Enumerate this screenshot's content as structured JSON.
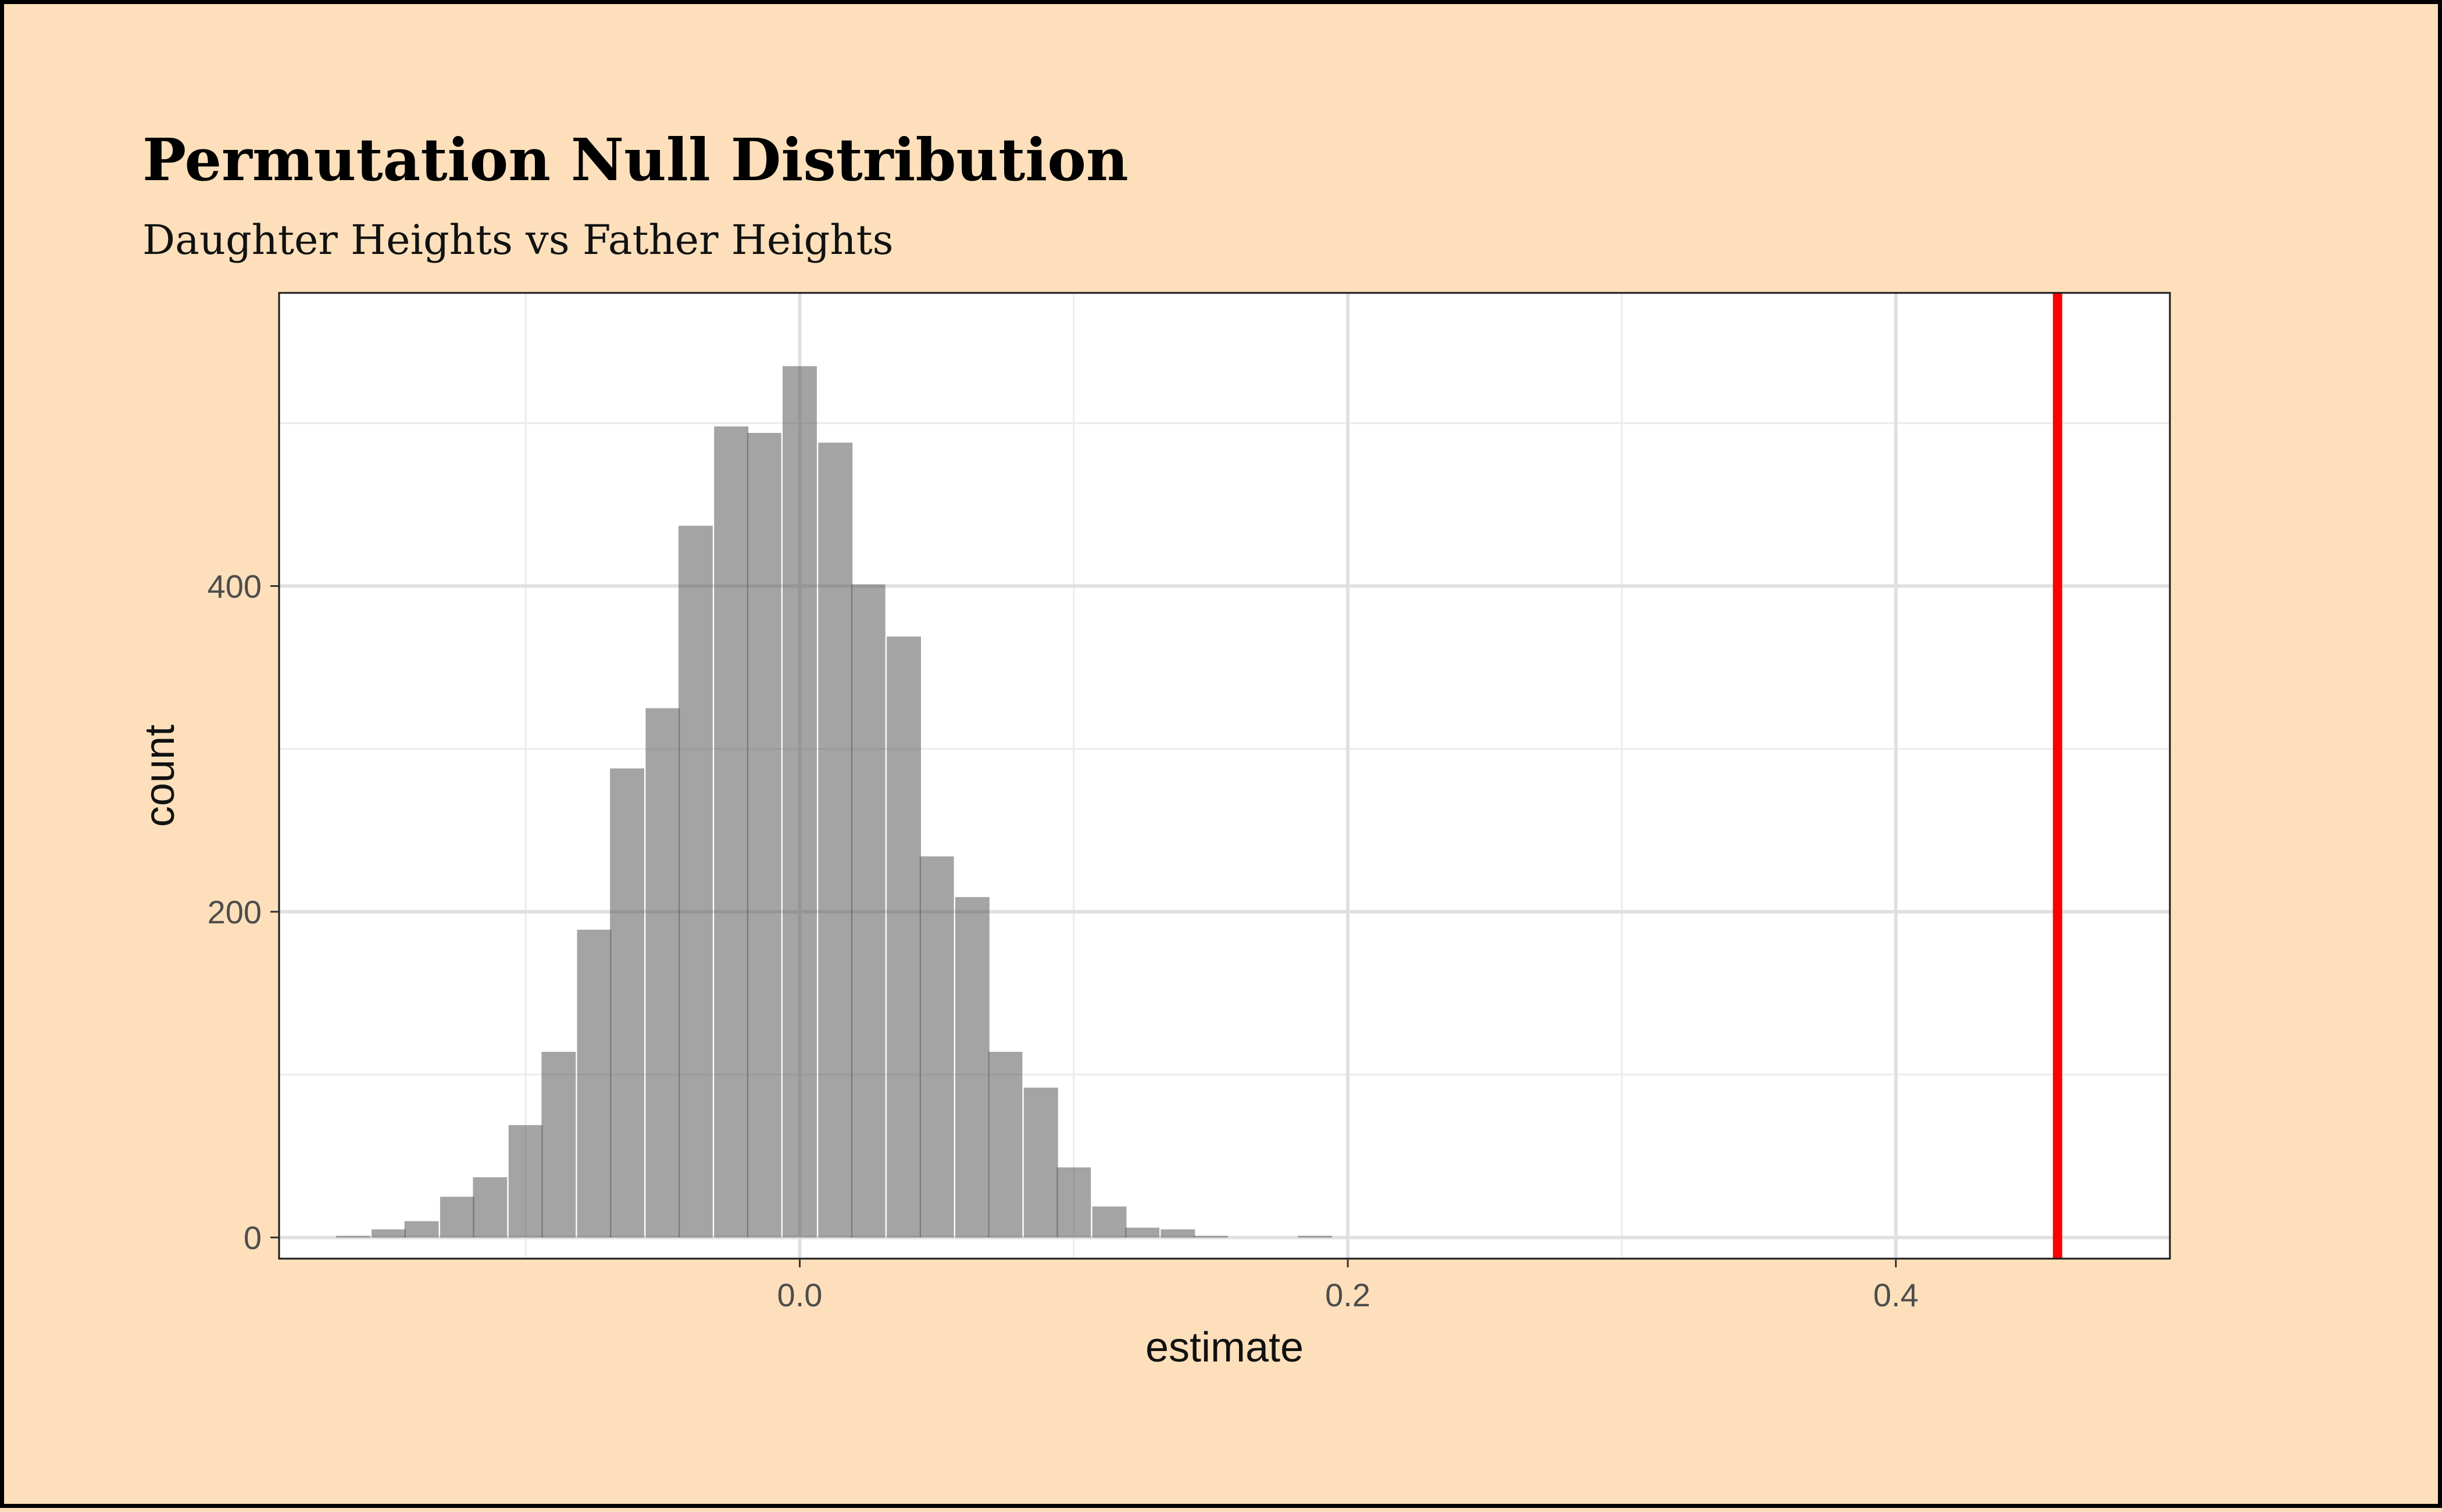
{
  "chart_data": {
    "type": "bar",
    "title": "Permutation Null Distribution",
    "subtitle": "Daughter Heights vs Father Heights",
    "xlabel": "estimate",
    "ylabel": "count",
    "xlim": [
      -0.19,
      0.5
    ],
    "ylim": [
      -13,
      580
    ],
    "x_ticks": [
      0.0,
      0.2,
      0.4
    ],
    "x_tick_labels": [
      "0.0",
      "0.2",
      "0.4"
    ],
    "y_ticks": [
      0,
      200,
      400
    ],
    "y_tick_labels": [
      "0",
      "200",
      "400"
    ],
    "bin_width": 0.0125,
    "bins": [
      {
        "x": -0.163,
        "count": 1
      },
      {
        "x": -0.15,
        "count": 5
      },
      {
        "x": -0.138,
        "count": 10
      },
      {
        "x": -0.125,
        "count": 25
      },
      {
        "x": -0.113,
        "count": 37
      },
      {
        "x": -0.1,
        "count": 69
      },
      {
        "x": -0.088,
        "count": 114
      },
      {
        "x": -0.075,
        "count": 189
      },
      {
        "x": -0.063,
        "count": 288
      },
      {
        "x": -0.05,
        "count": 325
      },
      {
        "x": -0.038,
        "count": 437
      },
      {
        "x": -0.025,
        "count": 498
      },
      {
        "x": -0.013,
        "count": 494
      },
      {
        "x": 0.0,
        "count": 535
      },
      {
        "x": 0.013,
        "count": 488
      },
      {
        "x": 0.025,
        "count": 401
      },
      {
        "x": 0.038,
        "count": 369
      },
      {
        "x": 0.05,
        "count": 234
      },
      {
        "x": 0.063,
        "count": 209
      },
      {
        "x": 0.075,
        "count": 114
      },
      {
        "x": 0.088,
        "count": 92
      },
      {
        "x": 0.1,
        "count": 43
      },
      {
        "x": 0.113,
        "count": 19
      },
      {
        "x": 0.125,
        "count": 6
      },
      {
        "x": 0.138,
        "count": 5
      },
      {
        "x": 0.15,
        "count": 1
      },
      {
        "x": 0.163,
        "count": 0
      },
      {
        "x": 0.175,
        "count": 0
      },
      {
        "x": 0.188,
        "count": 1
      }
    ],
    "reference_line": {
      "x": 0.459,
      "color": "#ff0000"
    },
    "bar_color": "#a3a3a3",
    "grid": true,
    "background": "#fde0bb",
    "panel_background": "#ffffff",
    "legend": "none"
  }
}
